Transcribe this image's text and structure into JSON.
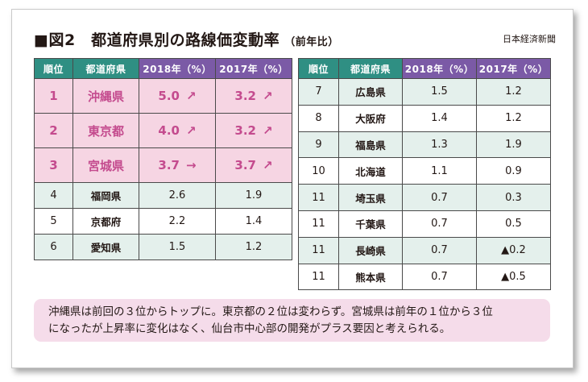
{
  "title": "■図2　都道府県別の路線価変動率",
  "subtitle": "（前年比）",
  "source": "日本経済新聞",
  "headers": {
    "rank": "順位",
    "pref": "都道府県",
    "y2018": "2018年（%）",
    "y2017": "2017年（%）"
  },
  "left_rows": [
    {
      "rank": "1",
      "pref": "沖縄県",
      "v2018": "5.0",
      "a2018": "↗",
      "v2017": "3.2",
      "a2017": "↗"
    },
    {
      "rank": "2",
      "pref": "東京都",
      "v2018": "4.0",
      "a2018": "↗",
      "v2017": "3.2",
      "a2017": "↗"
    },
    {
      "rank": "3",
      "pref": "宮城県",
      "v2018": "3.7",
      "a2018": "→",
      "v2017": "3.7",
      "a2017": "↗"
    },
    {
      "rank": "4",
      "pref": "福岡県",
      "v2018": "2.6",
      "v2017": "1.9"
    },
    {
      "rank": "5",
      "pref": "京都府",
      "v2018": "2.2",
      "v2017": "1.4"
    },
    {
      "rank": "6",
      "pref": "愛知県",
      "v2018": "1.5",
      "v2017": "1.2"
    }
  ],
  "right_rows": [
    {
      "rank": "7",
      "pref": "広島県",
      "v2018": "1.5",
      "v2017": "1.2"
    },
    {
      "rank": "8",
      "pref": "大阪府",
      "v2018": "1.4",
      "v2017": "1.2"
    },
    {
      "rank": "9",
      "pref": "福島県",
      "v2018": "1.3",
      "v2017": "1.9"
    },
    {
      "rank": "10",
      "pref": "北海道",
      "v2018": "1.1",
      "v2017": "0.9"
    },
    {
      "rank": "11",
      "pref": "埼玉県",
      "v2018": "0.7",
      "v2017": "0.3"
    },
    {
      "rank": "11",
      "pref": "千葉県",
      "v2018": "0.7",
      "v2017": "0.5"
    },
    {
      "rank": "11",
      "pref": "長崎県",
      "v2018": "0.7",
      "v2017": "▲0.2"
    },
    {
      "rank": "11",
      "pref": "熊本県",
      "v2018": "0.7",
      "v2017": "▲0.5"
    }
  ],
  "note_lines": [
    "沖縄県は前回の３位からトップに。東京都の２位は変わらず。宮城県は前年の１位から３位",
    "になったが上昇率に変化はなく、仙台市中心部の開発がプラス要因と考えられる。"
  ],
  "colors": {
    "header_green": "#2f8f83",
    "header_purple": "#7b5aa6",
    "top_rank_bg": "#f6d5e3",
    "top_rank_text": "#c44b8e",
    "alt_row_bg": "#e4f0ec",
    "note_bg": "#f5dcea"
  }
}
